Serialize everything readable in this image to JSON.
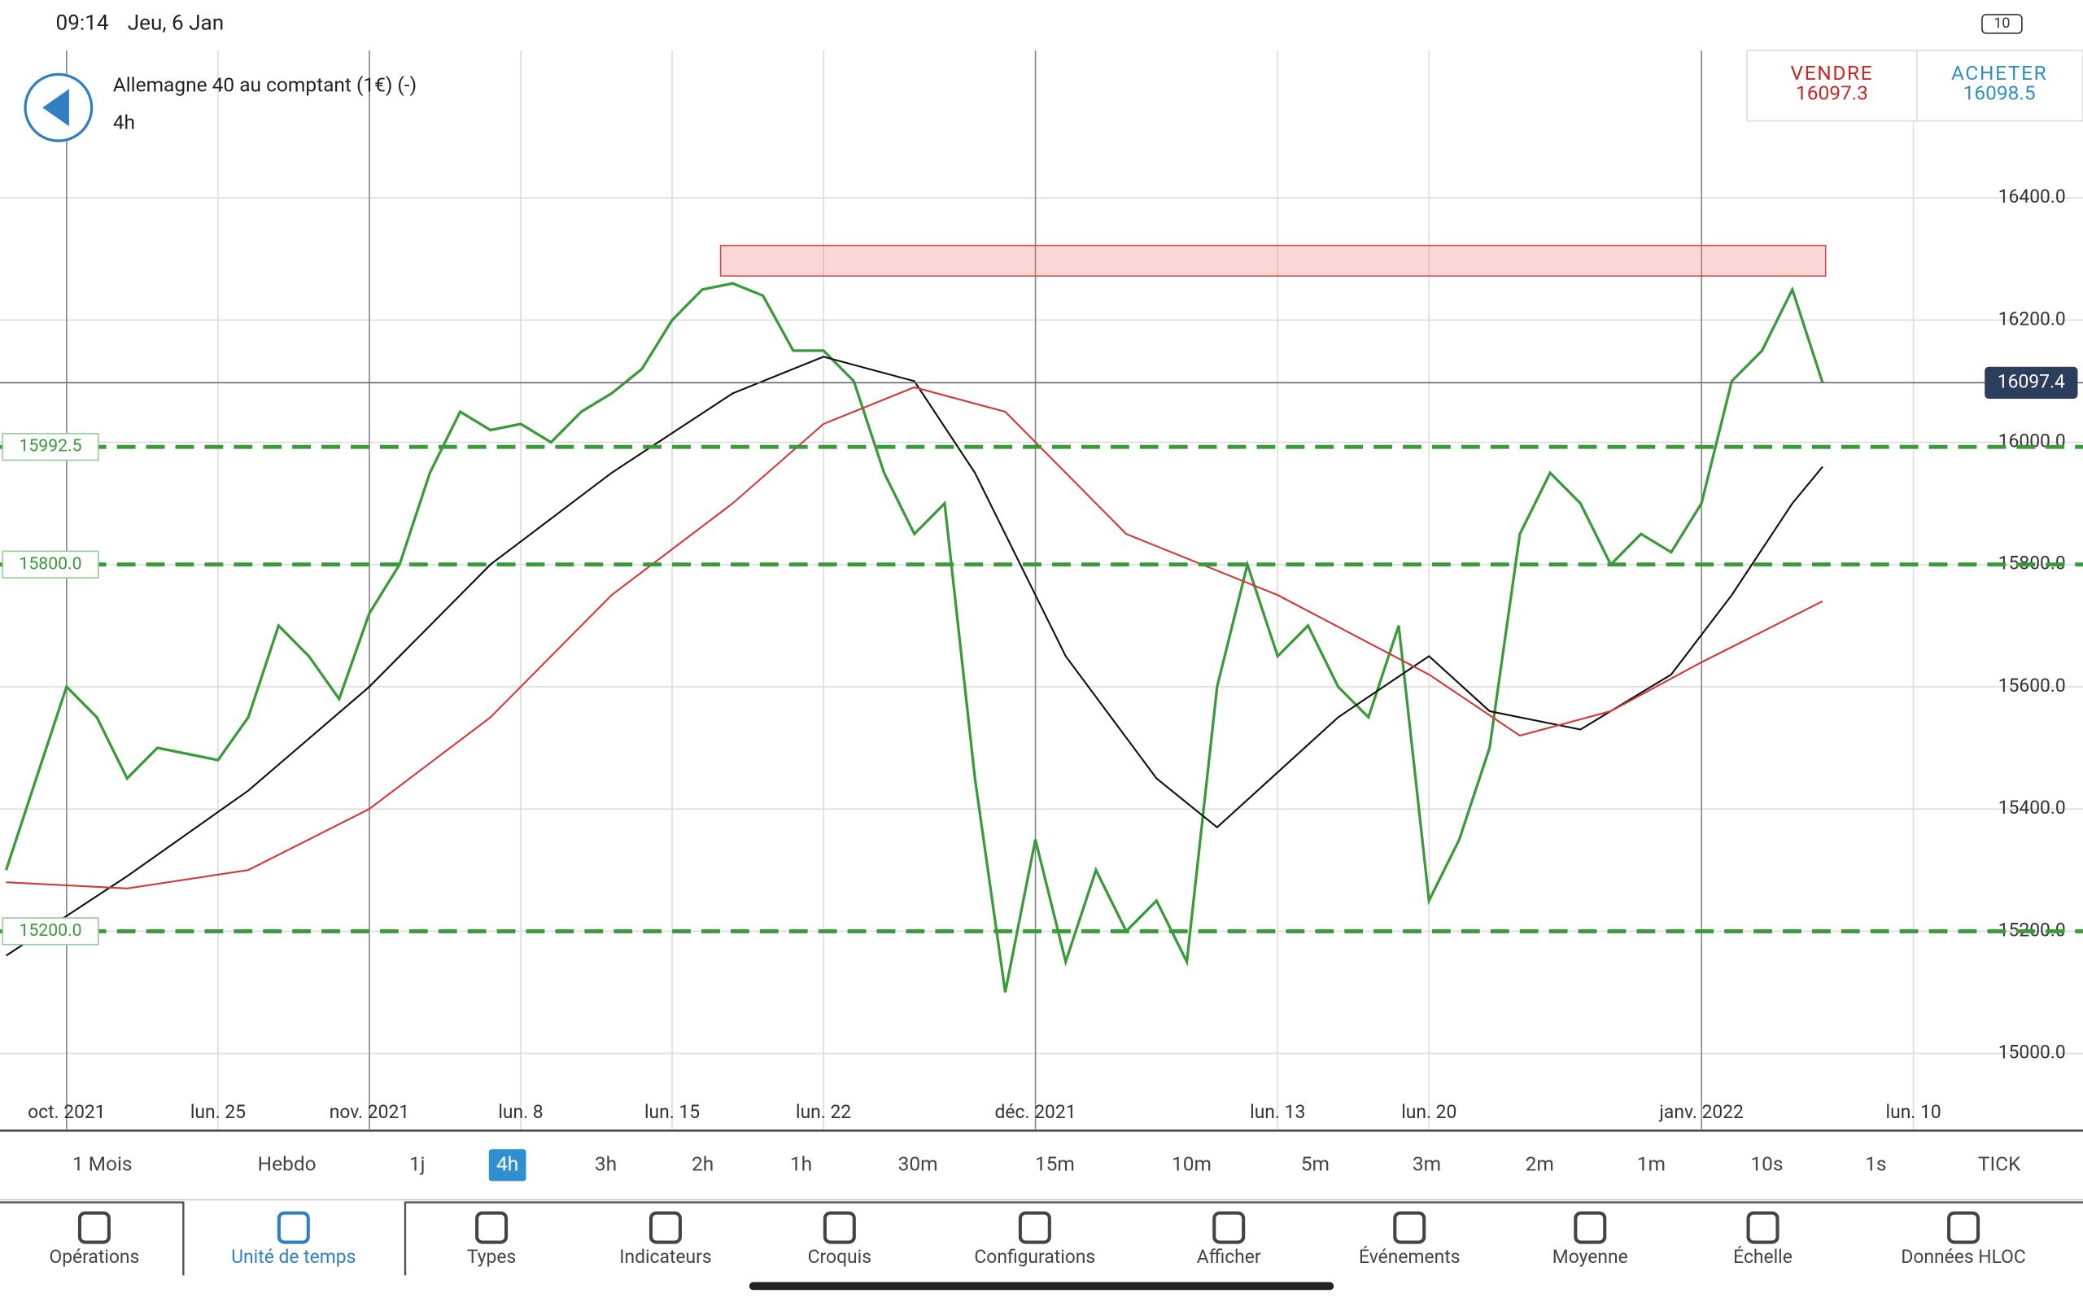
{
  "status_bar": {
    "time": "09:14",
    "date": "Jeu, 6 Jan",
    "battery": "10"
  },
  "header": {
    "instrument": "Allemagne 40 au comptant (1€) (-)",
    "timeframe": "4h"
  },
  "quote": {
    "sell_label": "VENDRE",
    "sell": "16097.3",
    "buy_label": "ACHETER",
    "buy": "16098.5"
  },
  "chart_data": {
    "type": "line",
    "xlim": [
      -2.2,
      66.6
    ],
    "xticks": [
      {
        "value": 0,
        "label": "oct. 2021"
      },
      {
        "value": 5,
        "label": "lun. 25"
      },
      {
        "value": 10,
        "label": "nov. 2021"
      },
      {
        "value": 15,
        "label": "lun. 8"
      },
      {
        "value": 20,
        "label": "lun. 15"
      },
      {
        "value": 25,
        "label": "lun. 22"
      },
      {
        "value": 32,
        "label": "déc. 2021"
      },
      {
        "value": 40,
        "label": "lun. 13"
      },
      {
        "value": 45,
        "label": "lun. 20"
      },
      {
        "value": 54,
        "label": "janv. 2022"
      },
      {
        "value": 61,
        "label": "lun. 10"
      }
    ],
    "ylim": [
      14876,
      16641
    ],
    "yticks": [
      {
        "value": 15000,
        "label": "15000.0"
      },
      {
        "value": 15200,
        "label": "15200.0"
      },
      {
        "value": 15400,
        "label": "15400.0"
      },
      {
        "value": 15600,
        "label": "15600.0"
      },
      {
        "value": 15800,
        "label": "15800.0"
      },
      {
        "value": 16000,
        "label": "16000.0"
      },
      {
        "value": 16200,
        "label": "16200.0"
      },
      {
        "value": 16400,
        "label": "16400.0"
      }
    ],
    "grid": true,
    "series": [
      {
        "color": "#3a9a3a",
        "x": [
          -2,
          -1,
          0,
          1,
          2,
          3,
          4,
          5,
          6,
          7,
          8,
          9,
          10,
          11,
          12,
          13,
          14,
          15,
          16,
          17,
          18,
          19,
          20,
          21,
          22,
          23,
          24,
          25,
          26,
          27,
          28,
          29,
          30,
          31,
          32,
          33,
          34,
          35,
          36,
          37,
          38,
          39,
          40,
          41,
          42,
          43,
          44,
          45,
          46,
          47,
          48,
          49,
          50,
          51,
          52,
          53,
          54,
          55,
          56,
          57,
          58
        ],
        "values": [
          15300,
          15450,
          15600,
          15550,
          15450,
          15500,
          15490,
          15480,
          15550,
          15700,
          15650,
          15580,
          15720,
          15800,
          15950,
          16050,
          16020,
          16030,
          16000,
          16050,
          16080,
          16120,
          16200,
          16250,
          16260,
          16240,
          16150,
          16150,
          16100,
          15950,
          15850,
          15900,
          15450,
          15100,
          15350,
          15150,
          15300,
          15200,
          15250,
          15150,
          15600,
          15800,
          15650,
          15700,
          15600,
          15550,
          15700,
          15250,
          15350,
          15500,
          15850,
          15950,
          15900,
          15800,
          15850,
          15820,
          15900,
          16100,
          16150,
          16250,
          16097.4
        ]
      },
      {
        "color": "#111111",
        "x": [
          -2,
          2,
          6,
          10,
          14,
          18,
          22,
          25,
          28,
          30,
          33,
          36,
          38,
          40,
          42,
          45,
          47,
          50,
          53,
          55,
          57,
          58
        ],
        "values": [
          15160,
          15290,
          15430,
          15600,
          15800,
          15950,
          16080,
          16140,
          16100,
          15950,
          15650,
          15450,
          15370,
          15460,
          15550,
          15650,
          15560,
          15530,
          15620,
          15750,
          15900,
          15960
        ]
      },
      {
        "color": "#d03a3a",
        "x": [
          -2,
          2,
          6,
          10,
          14,
          18,
          22,
          25,
          28,
          31,
          35,
          40,
          45,
          48,
          51,
          54,
          58
        ],
        "values": [
          15280,
          15270,
          15300,
          15400,
          15550,
          15750,
          15900,
          16030,
          16090,
          16050,
          15850,
          15750,
          15620,
          15520,
          15560,
          15640,
          15740
        ]
      }
    ],
    "levels": [
      15992.5,
      {
        "value": 15800,
        "label": "15800.0"
      },
      {
        "value": 15200,
        "label": "15200.0"
      }
    ],
    "last_price": 16097.4,
    "zone": {
      "x": [
        21.6,
        58.1
      ],
      "y": [
        16272,
        16322
      ]
    }
  },
  "timeframes": {
    "items": [
      "1 Mois",
      "Hebdo",
      "1j",
      "4h",
      "3h",
      "2h",
      "1h",
      "30m",
      "15m",
      "10m",
      "5m",
      "3m",
      "2m",
      "1m",
      "10s",
      "1s",
      "TICK"
    ],
    "selected": 3
  },
  "nav": {
    "items": [
      "Opérations",
      "Unité de temps",
      "Types",
      "Indicateurs",
      "Croquis",
      "Configurations",
      "Afficher",
      "Événements",
      "Moyenne",
      "Échelle",
      "Données HLOC"
    ],
    "selected": 1
  }
}
